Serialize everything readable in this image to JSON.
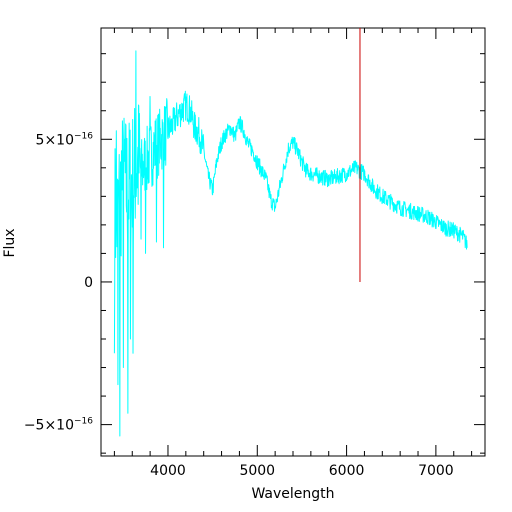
{
  "chart_data": {
    "type": "line",
    "xlabel": "Wavelength",
    "ylabel": "Flux",
    "xlim": [
      3250,
      7550
    ],
    "ylim": [
      -6.1e-16,
      8.9e-16
    ],
    "x_ticks": [
      {
        "value": 4000,
        "label": "4000"
      },
      {
        "value": 5000,
        "label": "5000"
      },
      {
        "value": 6000,
        "label": "6000"
      },
      {
        "value": 7000,
        "label": "7000"
      }
    ],
    "y_ticks": [
      {
        "value": 5e-16,
        "mantissa": "5×10",
        "exponent": "−16"
      },
      {
        "value": 0,
        "mantissa": "0",
        "exponent": ""
      },
      {
        "value": -5e-16,
        "mantissa": "−5×10",
        "exponent": "−16"
      }
    ],
    "x_minor_step": 200,
    "y_minor_step": 1e-16,
    "grid": false,
    "colors": {
      "spectrum": "#00ffff",
      "marker": "#cc0000",
      "axes": "#000000"
    },
    "series": [
      {
        "x": [
          3400,
          3430,
          3460,
          3500,
          3550,
          3600,
          3650,
          3700,
          3750,
          3800,
          3850,
          3900,
          3950,
          4000,
          4050,
          4100,
          4150,
          4200,
          4250,
          4300,
          4350,
          4400,
          4450,
          4500,
          4550,
          4600,
          4650,
          4700,
          4750,
          4800,
          4850,
          4900,
          4950,
          5000,
          5050,
          5100,
          5150,
          5200,
          5250,
          5300,
          5350,
          5400,
          5450,
          5500,
          5550,
          5600,
          5700,
          5800,
          5900,
          6000,
          6100,
          6200,
          6300,
          6400,
          6500,
          6600,
          6700,
          6800,
          6900,
          7000,
          7100,
          7200,
          7300,
          7350
        ],
        "y": [
          2.6e-16,
          2.1e-16,
          3e-16,
          3.6e-16,
          3.2e-16,
          3.5e-16,
          4.2e-16,
          3.9e-16,
          4.2e-16,
          4.4e-16,
          4.7e-16,
          4.9e-16,
          5.1e-16,
          5.3e-16,
          5.5e-16,
          5.8e-16,
          6e-16,
          6.2e-16,
          6e-16,
          5.4e-16,
          5.2e-16,
          4.6e-16,
          3.7e-16,
          3.2e-16,
          4.3e-16,
          4.9e-16,
          5.2e-16,
          5.4e-16,
          5.1e-16,
          5.6e-16,
          5.3e-16,
          4.8e-16,
          4.6e-16,
          4.2e-16,
          3.9e-16,
          3.6e-16,
          2.9e-16,
          2.6e-16,
          3.3e-16,
          4e-16,
          4.7e-16,
          4.9e-16,
          4.6e-16,
          4.2e-16,
          3.9e-16,
          3.8e-16,
          3.7e-16,
          3.6e-16,
          3.7e-16,
          3.8e-16,
          4e-16,
          3.8e-16,
          3.3e-16,
          3e-16,
          2.8e-16,
          2.6e-16,
          2.5e-16,
          2.4e-16,
          2.3e-16,
          2.1e-16,
          1.9e-16,
          1.8e-16,
          1.6e-16,
          1.3e-16
        ],
        "spikes": [
          {
            "x": 3400,
            "y": -2.5e-16
          },
          {
            "x": 3420,
            "y": 5.3e-16
          },
          {
            "x": 3440,
            "y": -3.6e-16
          },
          {
            "x": 3460,
            "y": -5.4e-16
          },
          {
            "x": 3480,
            "y": 4.6e-16
          },
          {
            "x": 3500,
            "y": -3e-16
          },
          {
            "x": 3520,
            "y": 5e-16
          },
          {
            "x": 3550,
            "y": -4.6e-16
          },
          {
            "x": 3580,
            "y": -2e-16
          },
          {
            "x": 3610,
            "y": -2.5e-16
          },
          {
            "x": 3640,
            "y": 8.1e-16
          },
          {
            "x": 3670,
            "y": 6.2e-16
          },
          {
            "x": 3700,
            "y": 1.5e-16
          },
          {
            "x": 3750,
            "y": 1e-16
          },
          {
            "x": 3800,
            "y": 6.5e-16
          },
          {
            "x": 3870,
            "y": 1.4e-16
          },
          {
            "x": 3950,
            "y": 1.2e-16
          }
        ]
      }
    ],
    "marker_line": {
      "x": 6150,
      "y_from": 0,
      "y_to": 8.9e-16
    }
  }
}
